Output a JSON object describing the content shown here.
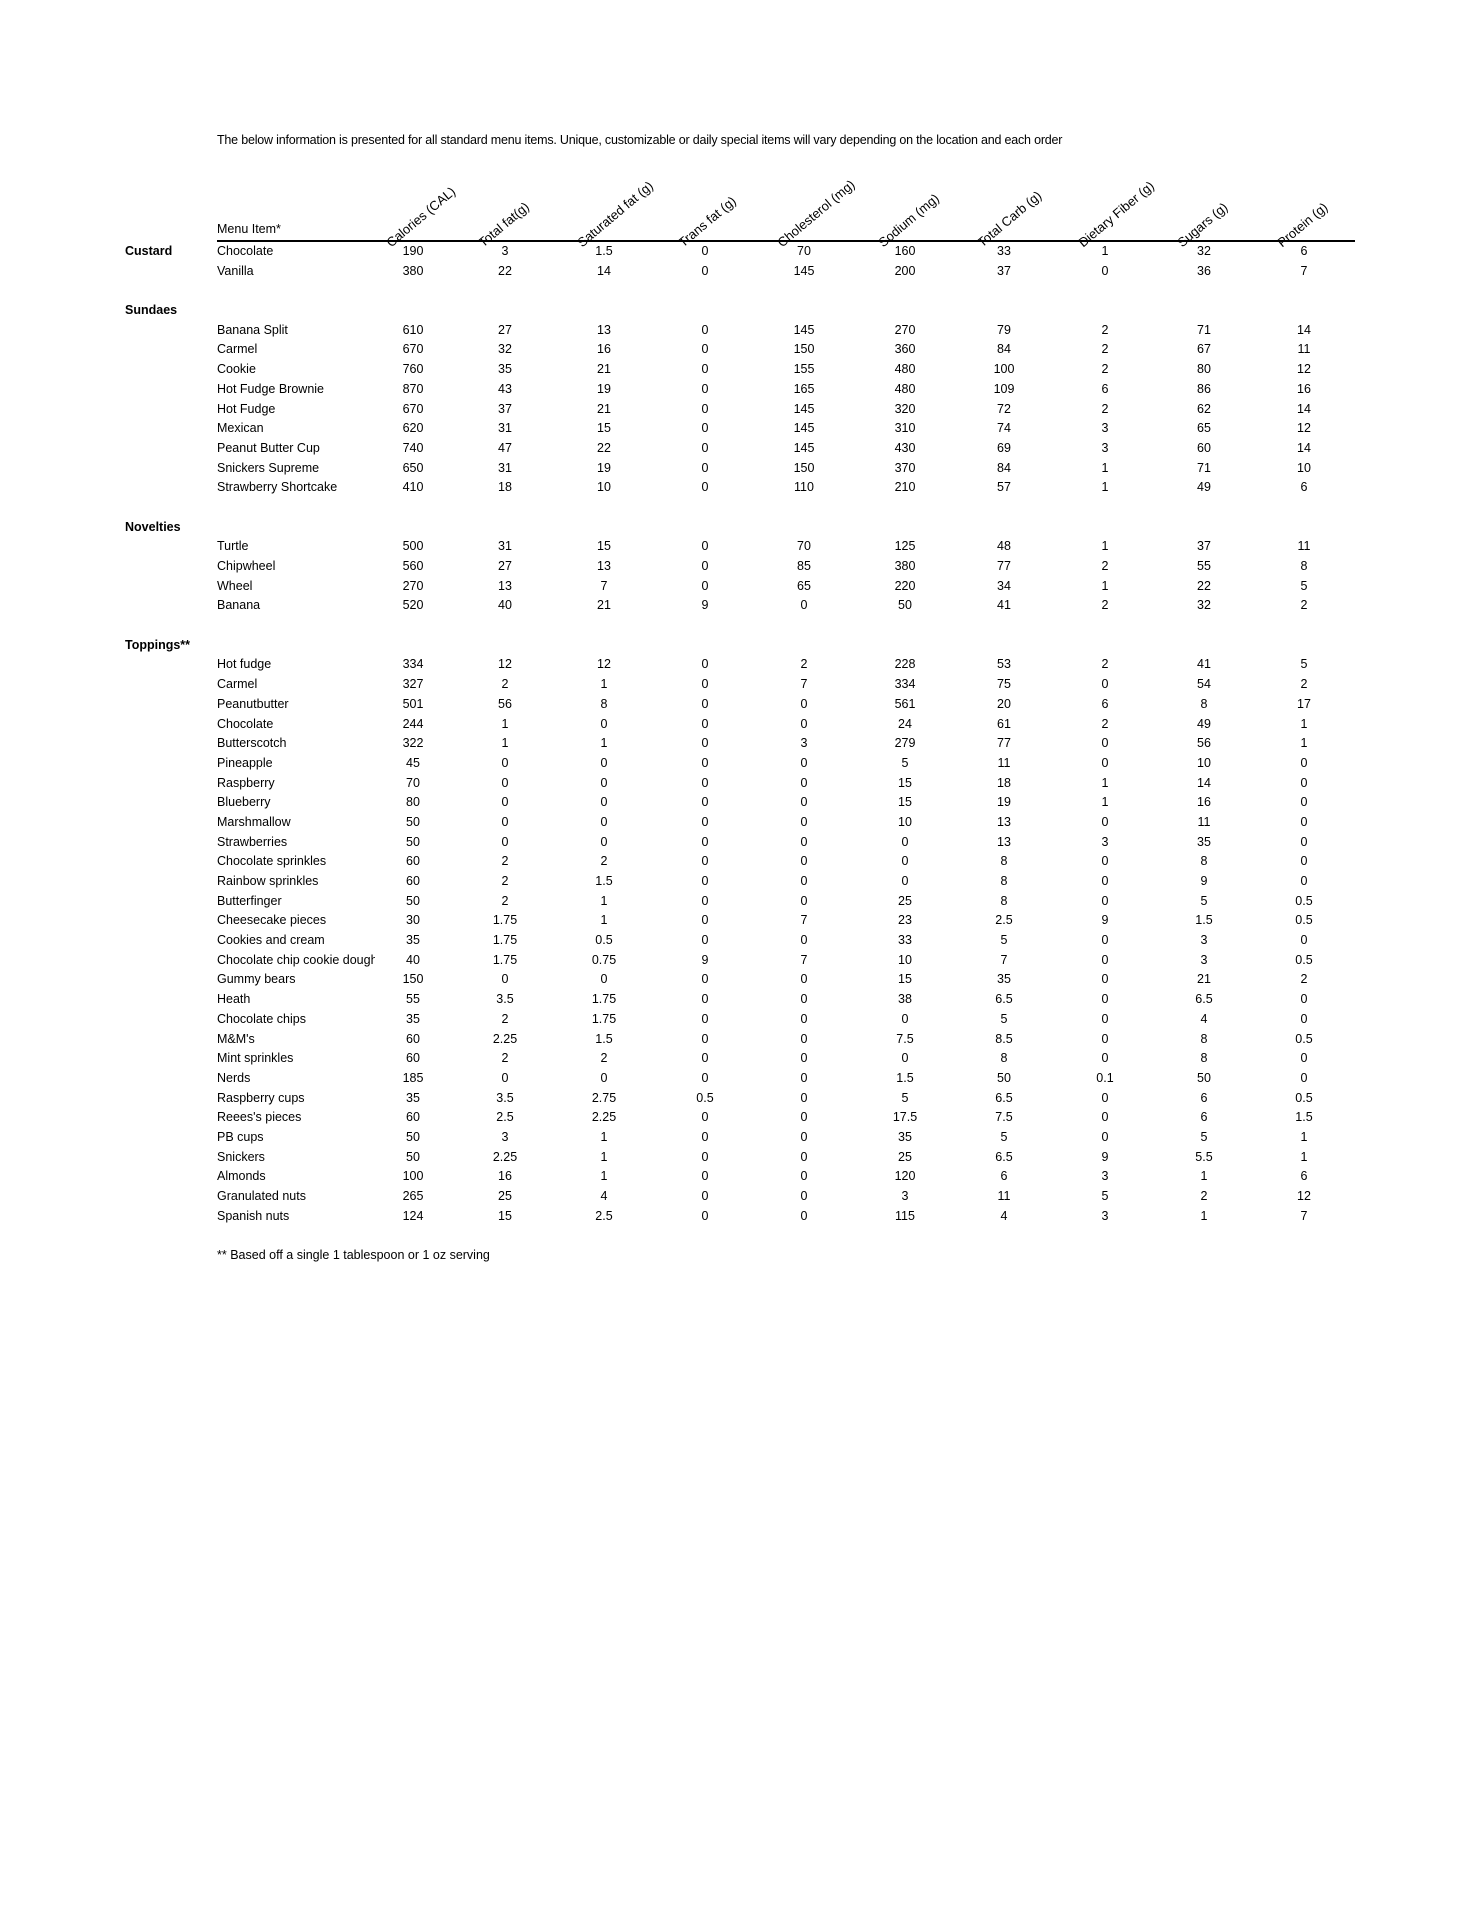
{
  "intro": "The below information is presented for all standard menu items. Unique, customizable or daily special items will vary depending on the location and each order",
  "menu_item_header": "Menu Item*",
  "columns": [
    "Calories (CAL)",
    "Total fat(g)",
    "Saturated fat (g)",
    "Trans fat (g)",
    "Cholesterol (mg)",
    "Sodium (mg)",
    "Total Carb (g)",
    "Dietary Fiber (g)",
    "Sugars (g)",
    "Protein (g)"
  ],
  "sections": [
    {
      "name": "Custard",
      "inline": true,
      "items": [
        [
          "Chocolate",
          "190",
          "3",
          "1.5",
          "0",
          "70",
          "160",
          "33",
          "1",
          "32",
          "6"
        ],
        [
          "Vanilla",
          "380",
          "22",
          "14",
          "0",
          "145",
          "200",
          "37",
          "0",
          "36",
          "7"
        ]
      ]
    },
    {
      "name": "Sundaes",
      "items": [
        [
          "Banana Split",
          "610",
          "27",
          "13",
          "0",
          "145",
          "270",
          "79",
          "2",
          "71",
          "14"
        ],
        [
          "Carmel",
          "670",
          "32",
          "16",
          "0",
          "150",
          "360",
          "84",
          "2",
          "67",
          "11"
        ],
        [
          "Cookie",
          "760",
          "35",
          "21",
          "0",
          "155",
          "480",
          "100",
          "2",
          "80",
          "12"
        ],
        [
          "Hot Fudge Brownie",
          "870",
          "43",
          "19",
          "0",
          "165",
          "480",
          "109",
          "6",
          "86",
          "16"
        ],
        [
          "Hot Fudge",
          "670",
          "37",
          "21",
          "0",
          "145",
          "320",
          "72",
          "2",
          "62",
          "14"
        ],
        [
          "Mexican",
          "620",
          "31",
          "15",
          "0",
          "145",
          "310",
          "74",
          "3",
          "65",
          "12"
        ],
        [
          "Peanut Butter Cup",
          "740",
          "47",
          "22",
          "0",
          "145",
          "430",
          "69",
          "3",
          "60",
          "14"
        ],
        [
          "Snickers Supreme",
          "650",
          "31",
          "19",
          "0",
          "150",
          "370",
          "84",
          "1",
          "71",
          "10"
        ],
        [
          "Strawberry Shortcake",
          "410",
          "18",
          "10",
          "0",
          "110",
          "210",
          "57",
          "1",
          "49",
          "6"
        ]
      ]
    },
    {
      "name": "Novelties",
      "items": [
        [
          "Turtle",
          "500",
          "31",
          "15",
          "0",
          "70",
          "125",
          "48",
          "1",
          "37",
          "11"
        ],
        [
          "Chipwheel",
          "560",
          "27",
          "13",
          "0",
          "85",
          "380",
          "77",
          "2",
          "55",
          "8"
        ],
        [
          "Wheel",
          "270",
          "13",
          "7",
          "0",
          "65",
          "220",
          "34",
          "1",
          "22",
          "5"
        ],
        [
          "Banana",
          "520",
          "40",
          "21",
          "9",
          "0",
          "50",
          "41",
          "2",
          "32",
          "2"
        ]
      ]
    },
    {
      "name": "Toppings**",
      "items": [
        [
          "Hot fudge",
          "334",
          "12",
          "12",
          "0",
          "2",
          "228",
          "53",
          "2",
          "41",
          "5"
        ],
        [
          "Carmel",
          "327",
          "2",
          "1",
          "0",
          "7",
          "334",
          "75",
          "0",
          "54",
          "2"
        ],
        [
          "Peanutbutter",
          "501",
          "56",
          "8",
          "0",
          "0",
          "561",
          "20",
          "6",
          "8",
          "17"
        ],
        [
          "Chocolate",
          "244",
          "1",
          "0",
          "0",
          "0",
          "24",
          "61",
          "2",
          "49",
          "1"
        ],
        [
          "Butterscotch",
          "322",
          "1",
          "1",
          "0",
          "3",
          "279",
          "77",
          "0",
          "56",
          "1"
        ],
        [
          "Pineapple",
          "45",
          "0",
          "0",
          "0",
          "0",
          "5",
          "11",
          "0",
          "10",
          "0"
        ],
        [
          "Raspberry",
          "70",
          "0",
          "0",
          "0",
          "0",
          "15",
          "18",
          "1",
          "14",
          "0"
        ],
        [
          "Blueberry",
          "80",
          "0",
          "0",
          "0",
          "0",
          "15",
          "19",
          "1",
          "16",
          "0"
        ],
        [
          "Marshmallow",
          "50",
          "0",
          "0",
          "0",
          "0",
          "10",
          "13",
          "0",
          "11",
          "0"
        ],
        [
          "Strawberries",
          "50",
          "0",
          "0",
          "0",
          "0",
          "0",
          "13",
          "3",
          "35",
          "0"
        ],
        [
          "Chocolate sprinkles",
          "60",
          "2",
          "2",
          "0",
          "0",
          "0",
          "8",
          "0",
          "8",
          "0"
        ],
        [
          "Rainbow sprinkles",
          "60",
          "2",
          "1.5",
          "0",
          "0",
          "0",
          "8",
          "0",
          "9",
          "0"
        ],
        [
          "Butterfinger",
          "50",
          "2",
          "1",
          "0",
          "0",
          "25",
          "8",
          "0",
          "5",
          "0.5"
        ],
        [
          "Cheesecake pieces",
          "30",
          "1.75",
          "1",
          "0",
          "7",
          "23",
          "2.5",
          "9",
          "1.5",
          "0.5"
        ],
        [
          "Cookies and cream",
          "35",
          "1.75",
          "0.5",
          "0",
          "0",
          "33",
          "5",
          "0",
          "3",
          "0"
        ],
        [
          "Chocolate chip cookie dough",
          "40",
          "1.75",
          "0.75",
          "9",
          "7",
          "10",
          "7",
          "0",
          "3",
          "0.5"
        ],
        [
          "Gummy bears",
          "150",
          "0",
          "0",
          "0",
          "0",
          "15",
          "35",
          "0",
          "21",
          "2"
        ],
        [
          "Heath",
          "55",
          "3.5",
          "1.75",
          "0",
          "0",
          "38",
          "6.5",
          "0",
          "6.5",
          "0"
        ],
        [
          "Chocolate chips",
          "35",
          "2",
          "1.75",
          "0",
          "0",
          "0",
          "5",
          "0",
          "4",
          "0"
        ],
        [
          "M&M's",
          "60",
          "2.25",
          "1.5",
          "0",
          "0",
          "7.5",
          "8.5",
          "0",
          "8",
          "0.5"
        ],
        [
          "Mint sprinkles",
          "60",
          "2",
          "2",
          "0",
          "0",
          "0",
          "8",
          "0",
          "8",
          "0"
        ],
        [
          "Nerds",
          "185",
          "0",
          "0",
          "0",
          "0",
          "1.5",
          "50",
          "0.1",
          "50",
          "0"
        ],
        [
          "Raspberry cups",
          "35",
          "3.5",
          "2.75",
          "0.5",
          "0",
          "5",
          "6.5",
          "0",
          "6",
          "0.5"
        ],
        [
          "Reees's pieces",
          "60",
          "2.5",
          "2.25",
          "0",
          "0",
          "17.5",
          "7.5",
          "0",
          "6",
          "1.5"
        ],
        [
          "PB cups",
          "50",
          "3",
          "1",
          "0",
          "0",
          "35",
          "5",
          "0",
          "5",
          "1"
        ],
        [
          "Snickers",
          "50",
          "2.25",
          "1",
          "0",
          "0",
          "25",
          "6.5",
          "9",
          "5.5",
          "1"
        ],
        [
          "Almonds",
          "100",
          "16",
          "1",
          "0",
          "0",
          "120",
          "6",
          "3",
          "1",
          "6"
        ],
        [
          "Granulated nuts",
          "265",
          "25",
          "4",
          "0",
          "0",
          "3",
          "11",
          "5",
          "2",
          "12"
        ],
        [
          "Spanish nuts",
          "124",
          "15",
          "2.5",
          "0",
          "0",
          "115",
          "4",
          "3",
          "1",
          "7"
        ]
      ]
    }
  ],
  "footnote": "** Based off a single 1 tablespoon or 1 oz serving"
}
